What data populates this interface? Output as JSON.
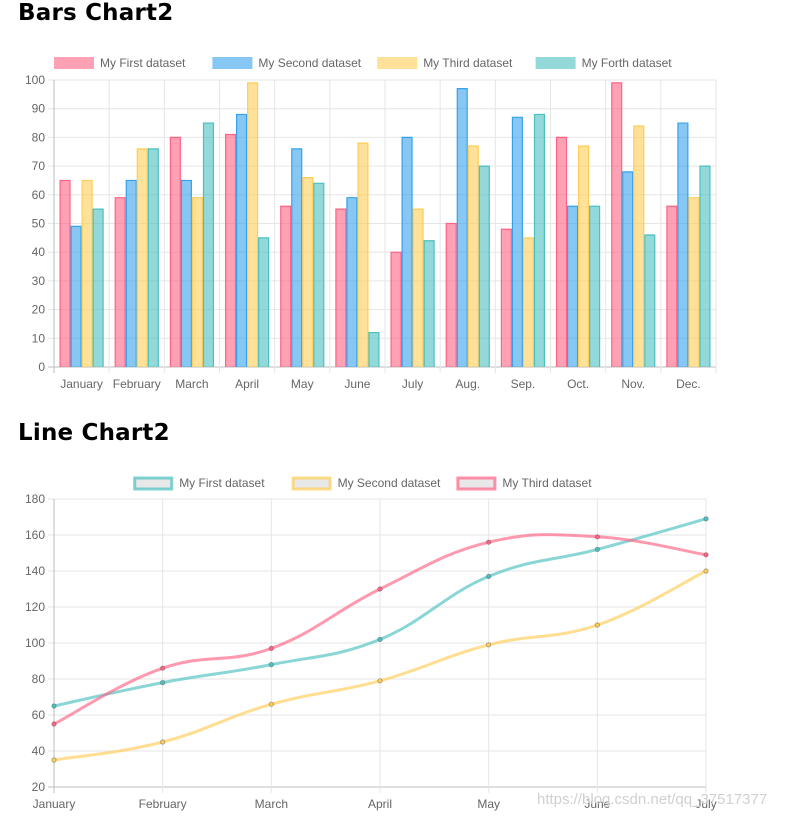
{
  "page": {
    "title1": "Bars Chart2",
    "title2": "Line Chart2",
    "watermark": "https://blog.csdn.net/qq_37517377"
  },
  "chart_data": [
    {
      "type": "bar",
      "title": "Bars Chart2",
      "categories": [
        "January",
        "February",
        "March",
        "April",
        "May",
        "June",
        "July",
        "Aug.",
        "Sep.",
        "Oct.",
        "Nov.",
        "Dec."
      ],
      "ylim": [
        0,
        100
      ],
      "yticks": [
        0,
        10,
        20,
        30,
        40,
        50,
        60,
        70,
        80,
        90,
        100
      ],
      "grid": true,
      "legend": "top",
      "series": [
        {
          "name": "My First dataset",
          "color": "#ff6384",
          "values": [
            65,
            59,
            80,
            81,
            56,
            55,
            40,
            50,
            48,
            80,
            99,
            56
          ]
        },
        {
          "name": "My Second dataset",
          "color": "#36a2eb",
          "values": [
            49,
            65,
            65,
            88,
            76,
            59,
            80,
            97,
            87,
            56,
            68,
            85
          ]
        },
        {
          "name": "My Third dataset",
          "color": "#ffcd56",
          "values": [
            65,
            76,
            59,
            99,
            66,
            78,
            55,
            77,
            45,
            77,
            84,
            59
          ]
        },
        {
          "name": "My Forth dataset",
          "color": "#4bc0c0",
          "values": [
            55,
            76,
            85,
            45,
            64,
            12,
            44,
            70,
            88,
            56,
            46,
            70
          ]
        }
      ]
    },
    {
      "type": "line",
      "title": "Line Chart2",
      "categories": [
        "January",
        "February",
        "March",
        "April",
        "May",
        "June",
        "July"
      ],
      "ylim": [
        20,
        180
      ],
      "yticks": [
        20,
        40,
        60,
        80,
        100,
        120,
        140,
        160,
        180
      ],
      "grid": true,
      "legend": "top",
      "series": [
        {
          "name": "My First dataset",
          "color": "#4bc0c0",
          "values": [
            65,
            78,
            88,
            102,
            137,
            152,
            169
          ]
        },
        {
          "name": "My Second dataset",
          "color": "#ffcd56",
          "values": [
            35,
            45,
            66,
            79,
            99,
            110,
            140
          ]
        },
        {
          "name": "My Third dataset",
          "color": "#ff6384",
          "values": [
            55,
            86,
            97,
            130,
            156,
            159,
            149
          ]
        }
      ]
    }
  ]
}
